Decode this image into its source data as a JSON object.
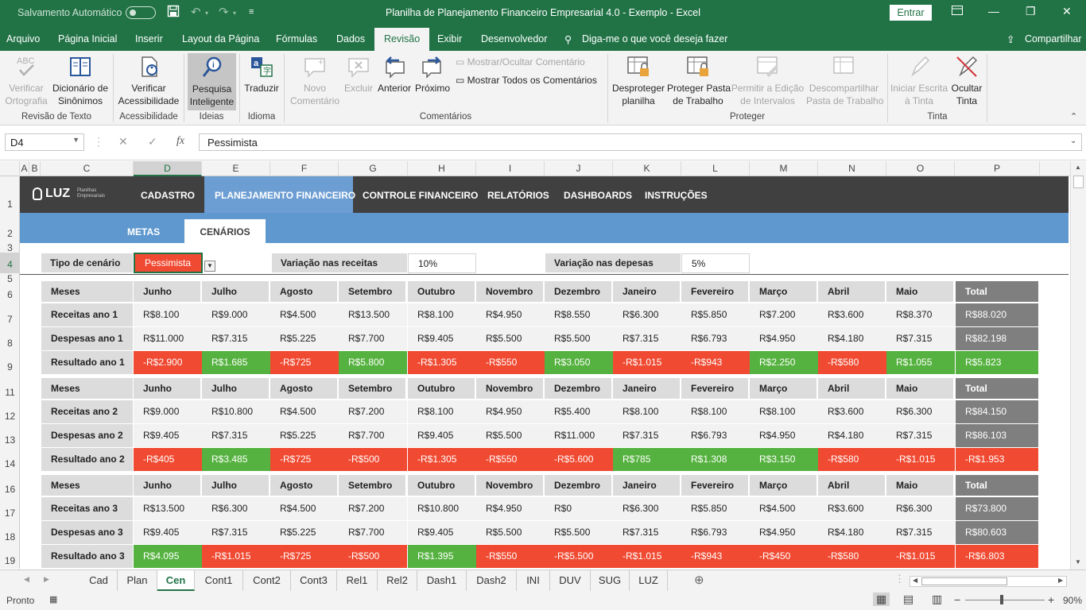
{
  "titlebar": {
    "autosave": "Salvamento Automático",
    "title": "Planilha de Planejamento Financeiro Empresarial 4.0 - Exemplo  -  Excel",
    "signin": "Entrar"
  },
  "menu": {
    "tabs": [
      "Arquivo",
      "Página Inicial",
      "Inserir",
      "Layout da Página",
      "Fórmulas",
      "Dados",
      "Revisão",
      "Exibir",
      "Desenvolvedor"
    ],
    "active": "Revisão",
    "tellme": "Diga-me o que você deseja fazer",
    "share": "Compartilhar"
  },
  "ribbon": {
    "verificar": "Verificar\nOrtografia",
    "dicionario": "Dicionário de\nSinônimos",
    "g_revisao": "Revisão de Texto",
    "acess": "Verificar\nAcessibilidade",
    "g_acess": "Acessibilidade",
    "pesquisa": "Pesquisa\nInteligente",
    "g_ideias": "Ideias",
    "traduzir": "Traduzir",
    "g_idioma": "Idioma",
    "novo": "Novo\nComentário",
    "excluir": "Excluir",
    "anterior": "Anterior",
    "proximo": "Próximo",
    "mostrar_ocultar": "Mostrar/Ocultar Comentário",
    "mostrar_todos": "Mostrar Todos os Comentários",
    "g_coment": "Comentários",
    "desproteger": "Desproteger\nplanilha",
    "proteger_pasta": "Proteger Pasta\nde Trabalho",
    "permitir": "Permitir a Edição\nde Intervalos",
    "descompartilhar": "Descompartilhar\nPasta de Trabalho",
    "g_proteger": "Proteger",
    "iniciar_escrita": "Iniciar Escrita\nà Tinta",
    "ocultar_tinta": "Ocultar\nTinta",
    "g_tinta": "Tinta"
  },
  "formula": {
    "namebox": "D4",
    "fx": "fx",
    "value": "Pessimista"
  },
  "columns": [
    "A",
    "B",
    "C",
    "D",
    "E",
    "F",
    "G",
    "H",
    "I",
    "J",
    "K",
    "L",
    "M",
    "N",
    "O",
    "P"
  ],
  "rows": [
    "1",
    "2",
    "3",
    "4",
    "5",
    "6",
    "7",
    "8",
    "9",
    "11",
    "12",
    "13",
    "14",
    "16",
    "17",
    "18",
    "19"
  ],
  "nav": {
    "logo": "LUZ",
    "logo_sub": "Planilhas\nEmpresariais",
    "items": [
      "CADASTRO",
      "PLANEJAMENTO FINANCEIRO",
      "CONTROLE FINANCEIRO",
      "RELATÓRIOS",
      "DASHBOARDS",
      "INSTRUÇÕES"
    ],
    "sub": [
      "METAS",
      "CENÁRIOS"
    ]
  },
  "params": {
    "tipo_label": "Tipo de cenário",
    "tipo_value": "Pessimista",
    "rec_label": "Variação nas receitas",
    "rec_value": "10%",
    "desp_label": "Variação nas depesas",
    "desp_value": "5%"
  },
  "months": [
    "Junho",
    "Julho",
    "Agosto",
    "Setembro",
    "Outubro",
    "Novembro",
    "Dezembro",
    "Janeiro",
    "Fevereiro",
    "Março",
    "Abril",
    "Maio"
  ],
  "meses_label": "Meses",
  "total_label": "Total",
  "tables": [
    {
      "rows": [
        {
          "label": "Receitas ano 1",
          "values": [
            "R$8.100",
            "R$9.000",
            "R$4.500",
            "R$13.500",
            "R$8.100",
            "R$4.950",
            "R$8.550",
            "R$6.300",
            "R$5.850",
            "R$7.200",
            "R$3.600",
            "R$8.370"
          ],
          "total": "R$88.020"
        },
        {
          "label": "Despesas ano 1",
          "values": [
            "R$11.000",
            "R$7.315",
            "R$5.225",
            "R$7.700",
            "R$9.405",
            "R$5.500",
            "R$5.500",
            "R$7.315",
            "R$6.793",
            "R$4.950",
            "R$4.180",
            "R$7.315"
          ],
          "total": "R$82.198"
        },
        {
          "label": "Resultado ano 1",
          "values": [
            "-R$2.900",
            "R$1.685",
            "-R$725",
            "R$5.800",
            "-R$1.305",
            "-R$550",
            "R$3.050",
            "-R$1.015",
            "-R$943",
            "R$2.250",
            "-R$580",
            "R$1.055"
          ],
          "total": "R$5.823"
        }
      ]
    },
    {
      "rows": [
        {
          "label": "Receitas ano 2",
          "values": [
            "R$9.000",
            "R$10.800",
            "R$4.500",
            "R$7.200",
            "R$8.100",
            "R$4.950",
            "R$5.400",
            "R$8.100",
            "R$8.100",
            "R$8.100",
            "R$3.600",
            "R$6.300"
          ],
          "total": "R$84.150"
        },
        {
          "label": "Despesas ano 2",
          "values": [
            "R$9.405",
            "R$7.315",
            "R$5.225",
            "R$7.700",
            "R$9.405",
            "R$5.500",
            "R$11.000",
            "R$7.315",
            "R$6.793",
            "R$4.950",
            "R$4.180",
            "R$7.315"
          ],
          "total": "R$86.103"
        },
        {
          "label": "Resultado ano 2",
          "values": [
            "-R$405",
            "R$3.485",
            "-R$725",
            "-R$500",
            "-R$1.305",
            "-R$550",
            "-R$5.600",
            "R$785",
            "R$1.308",
            "R$3.150",
            "-R$580",
            "-R$1.015"
          ],
          "total": "-R$1.953"
        }
      ]
    },
    {
      "rows": [
        {
          "label": "Receitas ano 3",
          "values": [
            "R$13.500",
            "R$6.300",
            "R$4.500",
            "R$7.200",
            "R$10.800",
            "R$4.950",
            "R$0",
            "R$6.300",
            "R$5.850",
            "R$4.500",
            "R$3.600",
            "R$6.300"
          ],
          "total": "R$73.800"
        },
        {
          "label": "Despesas ano 3",
          "values": [
            "R$9.405",
            "R$7.315",
            "R$5.225",
            "R$7.700",
            "R$9.405",
            "R$5.500",
            "R$5.500",
            "R$7.315",
            "R$6.793",
            "R$4.950",
            "R$4.180",
            "R$7.315"
          ],
          "total": "R$80.603"
        },
        {
          "label": "Resultado ano 3",
          "values": [
            "R$4.095",
            "-R$1.015",
            "-R$725",
            "-R$500",
            "R$1.395",
            "-R$550",
            "-R$5.500",
            "-R$1.015",
            "-R$943",
            "-R$450",
            "-R$580",
            "-R$1.015"
          ],
          "total": "-R$6.803"
        }
      ]
    }
  ],
  "sheets": [
    "Cad",
    "Plan",
    "Cen",
    "Cont1",
    "Cont2",
    "Cont3",
    "Rel1",
    "Rel2",
    "Dash1",
    "Dash2",
    "INI",
    "DUV",
    "SUG",
    "LUZ"
  ],
  "active_sheet": "Cen",
  "status": {
    "ready": "Pronto",
    "zoom": "90%"
  },
  "colors": {
    "green": "#217346",
    "negative": "#f04a32",
    "positive": "#56b240",
    "nav": "#404040",
    "subnav": "#5f98cf"
  }
}
